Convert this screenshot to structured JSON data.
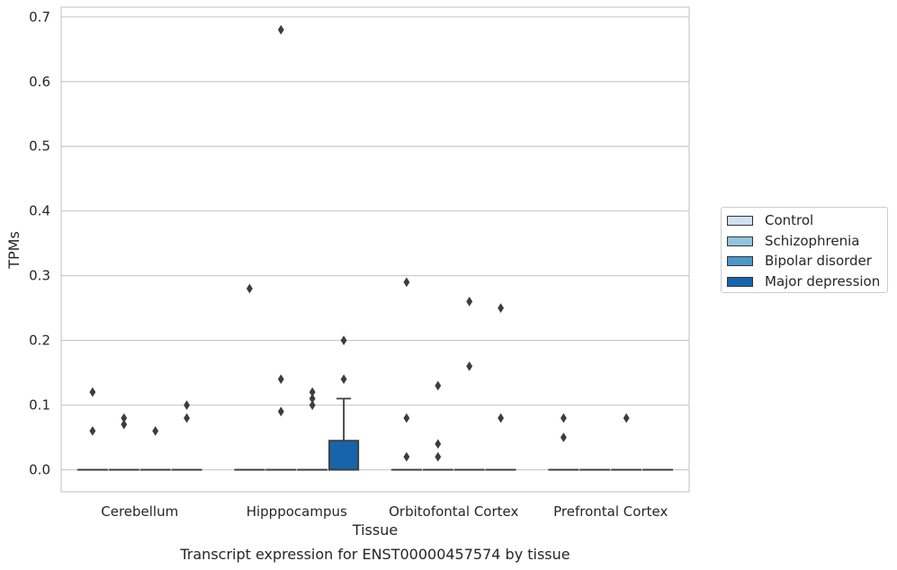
{
  "chart_data": {
    "type": "box",
    "caption": "Transcript expression for ENST00000457574 by tissue",
    "xlabel": "Tissue",
    "ylabel": "TPMs",
    "ylim": [
      -0.034,
      0.715
    ],
    "yticks": [
      0.0,
      0.1,
      0.2,
      0.3,
      0.4,
      0.5,
      0.6,
      0.7
    ],
    "ytick_labels": [
      "0.0",
      "0.1",
      "0.2",
      "0.3",
      "0.4",
      "0.5",
      "0.6",
      "0.7"
    ],
    "categories": [
      "Cerebellum",
      "Hipppocampus",
      "Orbitofontal Cortex",
      "Prefrontal Cortex"
    ],
    "grid": "horizontal",
    "legend_position": "right",
    "series": [
      {
        "name": "Control",
        "color": "#cfe1f2"
      },
      {
        "name": "Schizophrenia",
        "color": "#93c4de"
      },
      {
        "name": "Bipolar disorder",
        "color": "#4a97c9"
      },
      {
        "name": "Major depression",
        "color": "#1764ab"
      }
    ],
    "boxes": [
      {
        "category": "Cerebellum",
        "series": "Control",
        "q1": 0,
        "median": 0,
        "q3": 0,
        "whisker_low": 0,
        "whisker_high": 0,
        "outliers": [
          0.12,
          0.06
        ]
      },
      {
        "category": "Cerebellum",
        "series": "Schizophrenia",
        "q1": 0,
        "median": 0,
        "q3": 0,
        "whisker_low": 0,
        "whisker_high": 0,
        "outliers": [
          0.08,
          0.07
        ]
      },
      {
        "category": "Cerebellum",
        "series": "Bipolar disorder",
        "q1": 0,
        "median": 0,
        "q3": 0,
        "whisker_low": 0,
        "whisker_high": 0,
        "outliers": [
          0.06
        ]
      },
      {
        "category": "Cerebellum",
        "series": "Major depression",
        "q1": 0,
        "median": 0,
        "q3": 0,
        "whisker_low": 0,
        "whisker_high": 0,
        "outliers": [
          0.1,
          0.08
        ]
      },
      {
        "category": "Hipppocampus",
        "series": "Control",
        "q1": 0,
        "median": 0,
        "q3": 0,
        "whisker_low": 0,
        "whisker_high": 0,
        "outliers": [
          0.28
        ]
      },
      {
        "category": "Hipppocampus",
        "series": "Schizophrenia",
        "q1": 0,
        "median": 0,
        "q3": 0,
        "whisker_low": 0,
        "whisker_high": 0,
        "outliers": [
          0.68,
          0.14,
          0.09
        ]
      },
      {
        "category": "Hipppocampus",
        "series": "Bipolar disorder",
        "q1": 0,
        "median": 0,
        "q3": 0,
        "whisker_low": 0,
        "whisker_high": 0,
        "outliers": [
          0.12,
          0.11,
          0.1
        ]
      },
      {
        "category": "Hipppocampus",
        "series": "Major depression",
        "q1": 0,
        "median": 0,
        "q3": 0.045,
        "whisker_low": 0,
        "whisker_high": 0.11,
        "outliers": [
          0.2,
          0.14
        ]
      },
      {
        "category": "Orbitofontal Cortex",
        "series": "Control",
        "q1": 0,
        "median": 0,
        "q3": 0,
        "whisker_low": 0,
        "whisker_high": 0,
        "outliers": [
          0.29,
          0.08,
          0.02
        ]
      },
      {
        "category": "Orbitofontal Cortex",
        "series": "Schizophrenia",
        "q1": 0,
        "median": 0,
        "q3": 0,
        "whisker_low": 0,
        "whisker_high": 0,
        "outliers": [
          0.13,
          0.04,
          0.02
        ]
      },
      {
        "category": "Orbitofontal Cortex",
        "series": "Bipolar disorder",
        "q1": 0,
        "median": 0,
        "q3": 0,
        "whisker_low": 0,
        "whisker_high": 0,
        "outliers": [
          0.26,
          0.16
        ]
      },
      {
        "category": "Orbitofontal Cortex",
        "series": "Major depression",
        "q1": 0,
        "median": 0,
        "q3": 0,
        "whisker_low": 0,
        "whisker_high": 0,
        "outliers": [
          0.25,
          0.08
        ]
      },
      {
        "category": "Prefrontal Cortex",
        "series": "Control",
        "q1": 0,
        "median": 0,
        "q3": 0,
        "whisker_low": 0,
        "whisker_high": 0,
        "outliers": [
          0.08,
          0.05
        ]
      },
      {
        "category": "Prefrontal Cortex",
        "series": "Schizophrenia",
        "q1": 0,
        "median": 0,
        "q3": 0,
        "whisker_low": 0,
        "whisker_high": 0,
        "outliers": []
      },
      {
        "category": "Prefrontal Cortex",
        "series": "Bipolar disorder",
        "q1": 0,
        "median": 0,
        "q3": 0,
        "whisker_low": 0,
        "whisker_high": 0,
        "outliers": [
          0.08
        ]
      },
      {
        "category": "Prefrontal Cortex",
        "series": "Major depression",
        "q1": 0,
        "median": 0,
        "q3": 0,
        "whisker_low": 0,
        "whisker_high": 0,
        "outliers": []
      }
    ]
  }
}
